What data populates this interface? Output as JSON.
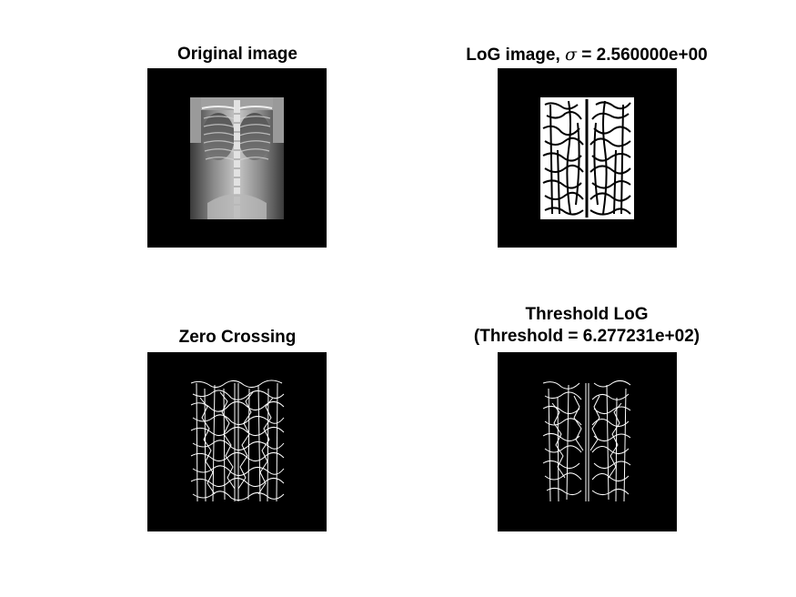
{
  "panels": [
    {
      "id": "original",
      "title": "Original image"
    },
    {
      "id": "log",
      "title_prefix": "LoG image, ",
      "sigma_symbol": "σ",
      "title_suffix": " = 2.560000e+00"
    },
    {
      "id": "zero-crossing",
      "title": "Zero Crossing"
    },
    {
      "id": "threshold",
      "title_line1": "Threshold LoG",
      "title_line2": "(Threshold = 6.277231e+02)"
    }
  ],
  "colors": {
    "background": "#ffffff",
    "image_background": "#000000",
    "edge": "#ffffff"
  }
}
